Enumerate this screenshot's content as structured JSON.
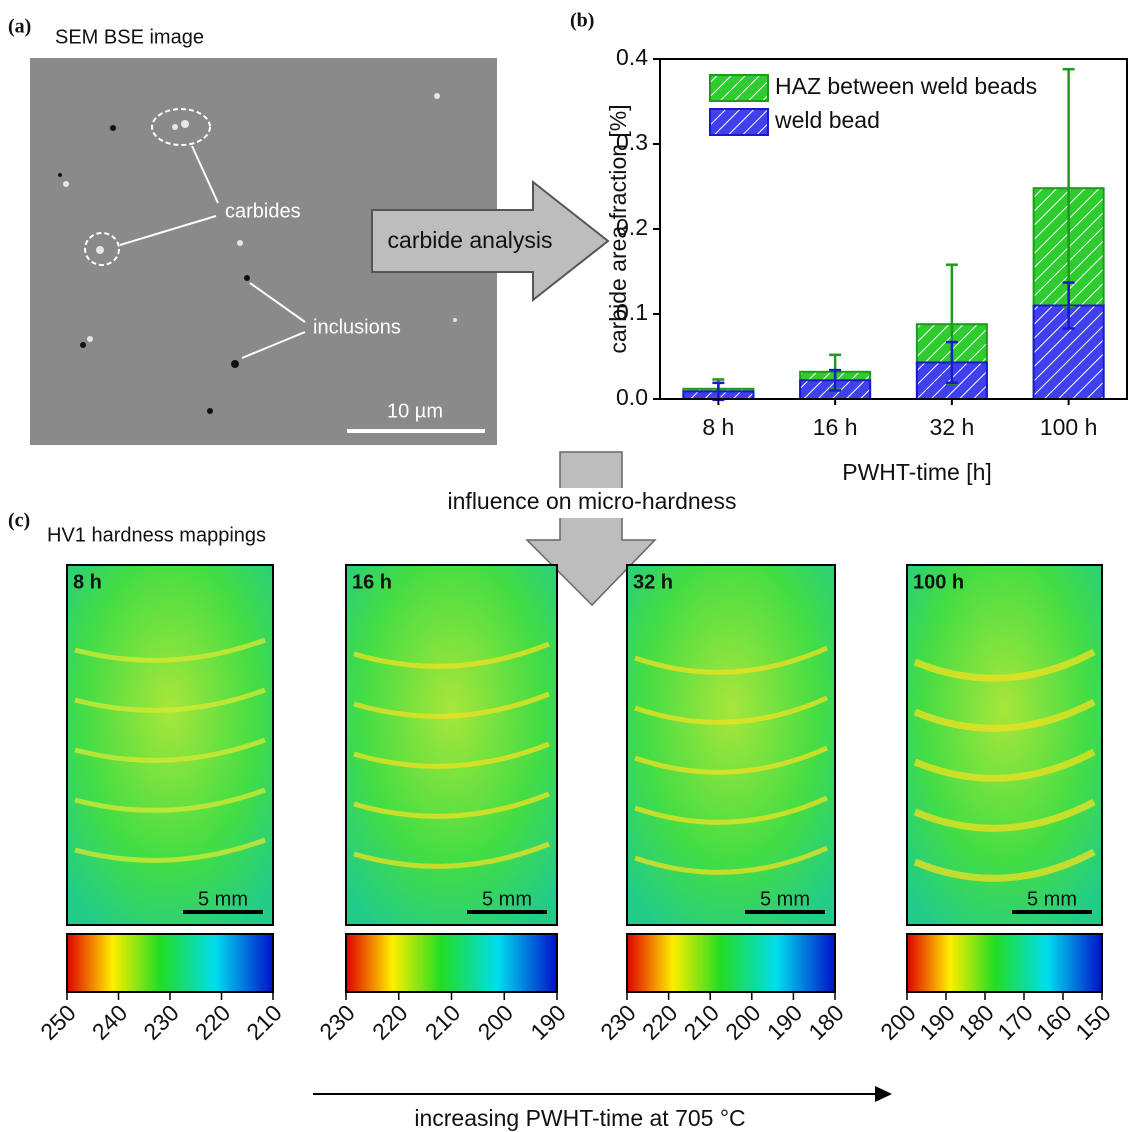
{
  "panel_a": {
    "label": "(a)",
    "title": "SEM BSE image",
    "annotations": [
      "carbides",
      "inclusions"
    ],
    "scale_bar": "10 µm"
  },
  "arrow_analysis": "carbide analysis",
  "chart_data": {
    "type": "bar",
    "panel_label": "(b)",
    "categories": [
      "8 h",
      "16 h",
      "32 h",
      "100 h"
    ],
    "series": [
      {
        "name": "HAZ between weld beads",
        "color": "#2ecc2e",
        "edge": "#1f9a1f",
        "values": [
          0.012,
          0.032,
          0.088,
          0.248
        ],
        "errors": [
          0.011,
          0.02,
          0.07,
          0.14
        ]
      },
      {
        "name": "weld bead",
        "color": "#4040ee",
        "edge": "#1a1acc",
        "values": [
          0.009,
          0.022,
          0.043,
          0.11
        ],
        "errors": [
          0.01,
          0.012,
          0.024,
          0.027
        ]
      }
    ],
    "ylim": [
      0,
      0.4
    ],
    "yticks": [
      {
        "value": 0,
        "label": "0.0"
      },
      0.1,
      0.2,
      0.3,
      0.4
    ],
    "y_label": "carbide area fraction [%]",
    "x_label": "PWHT-time [h]",
    "hatch": true
  },
  "arrow_hardness": "influence on micro-hardness",
  "panel_c": {
    "label": "(c)",
    "title": "HV1 hardness mappings",
    "maps": [
      {
        "label": "8 h",
        "scale_bar": "5 mm",
        "colorbar_lim": [
          250,
          210
        ],
        "colorbar_ticks": [
          250,
          240,
          230,
          220,
          210
        ]
      },
      {
        "label": "16 h",
        "scale_bar": "5 mm",
        "colorbar_lim": [
          230,
          190
        ],
        "colorbar_ticks": [
          230,
          220,
          210,
          200,
          190
        ]
      },
      {
        "label": "32 h",
        "scale_bar": "5 mm",
        "colorbar_lim": [
          230,
          180
        ],
        "colorbar_ticks": [
          230,
          220,
          210,
          200,
          190,
          180
        ]
      },
      {
        "label": "100 h",
        "scale_bar": "5 mm",
        "colorbar_lim": [
          200,
          150
        ],
        "colorbar_ticks": [
          200,
          190,
          180,
          170,
          160,
          150
        ]
      }
    ]
  },
  "arrow_time": "increasing PWHT-time at 705 °C"
}
